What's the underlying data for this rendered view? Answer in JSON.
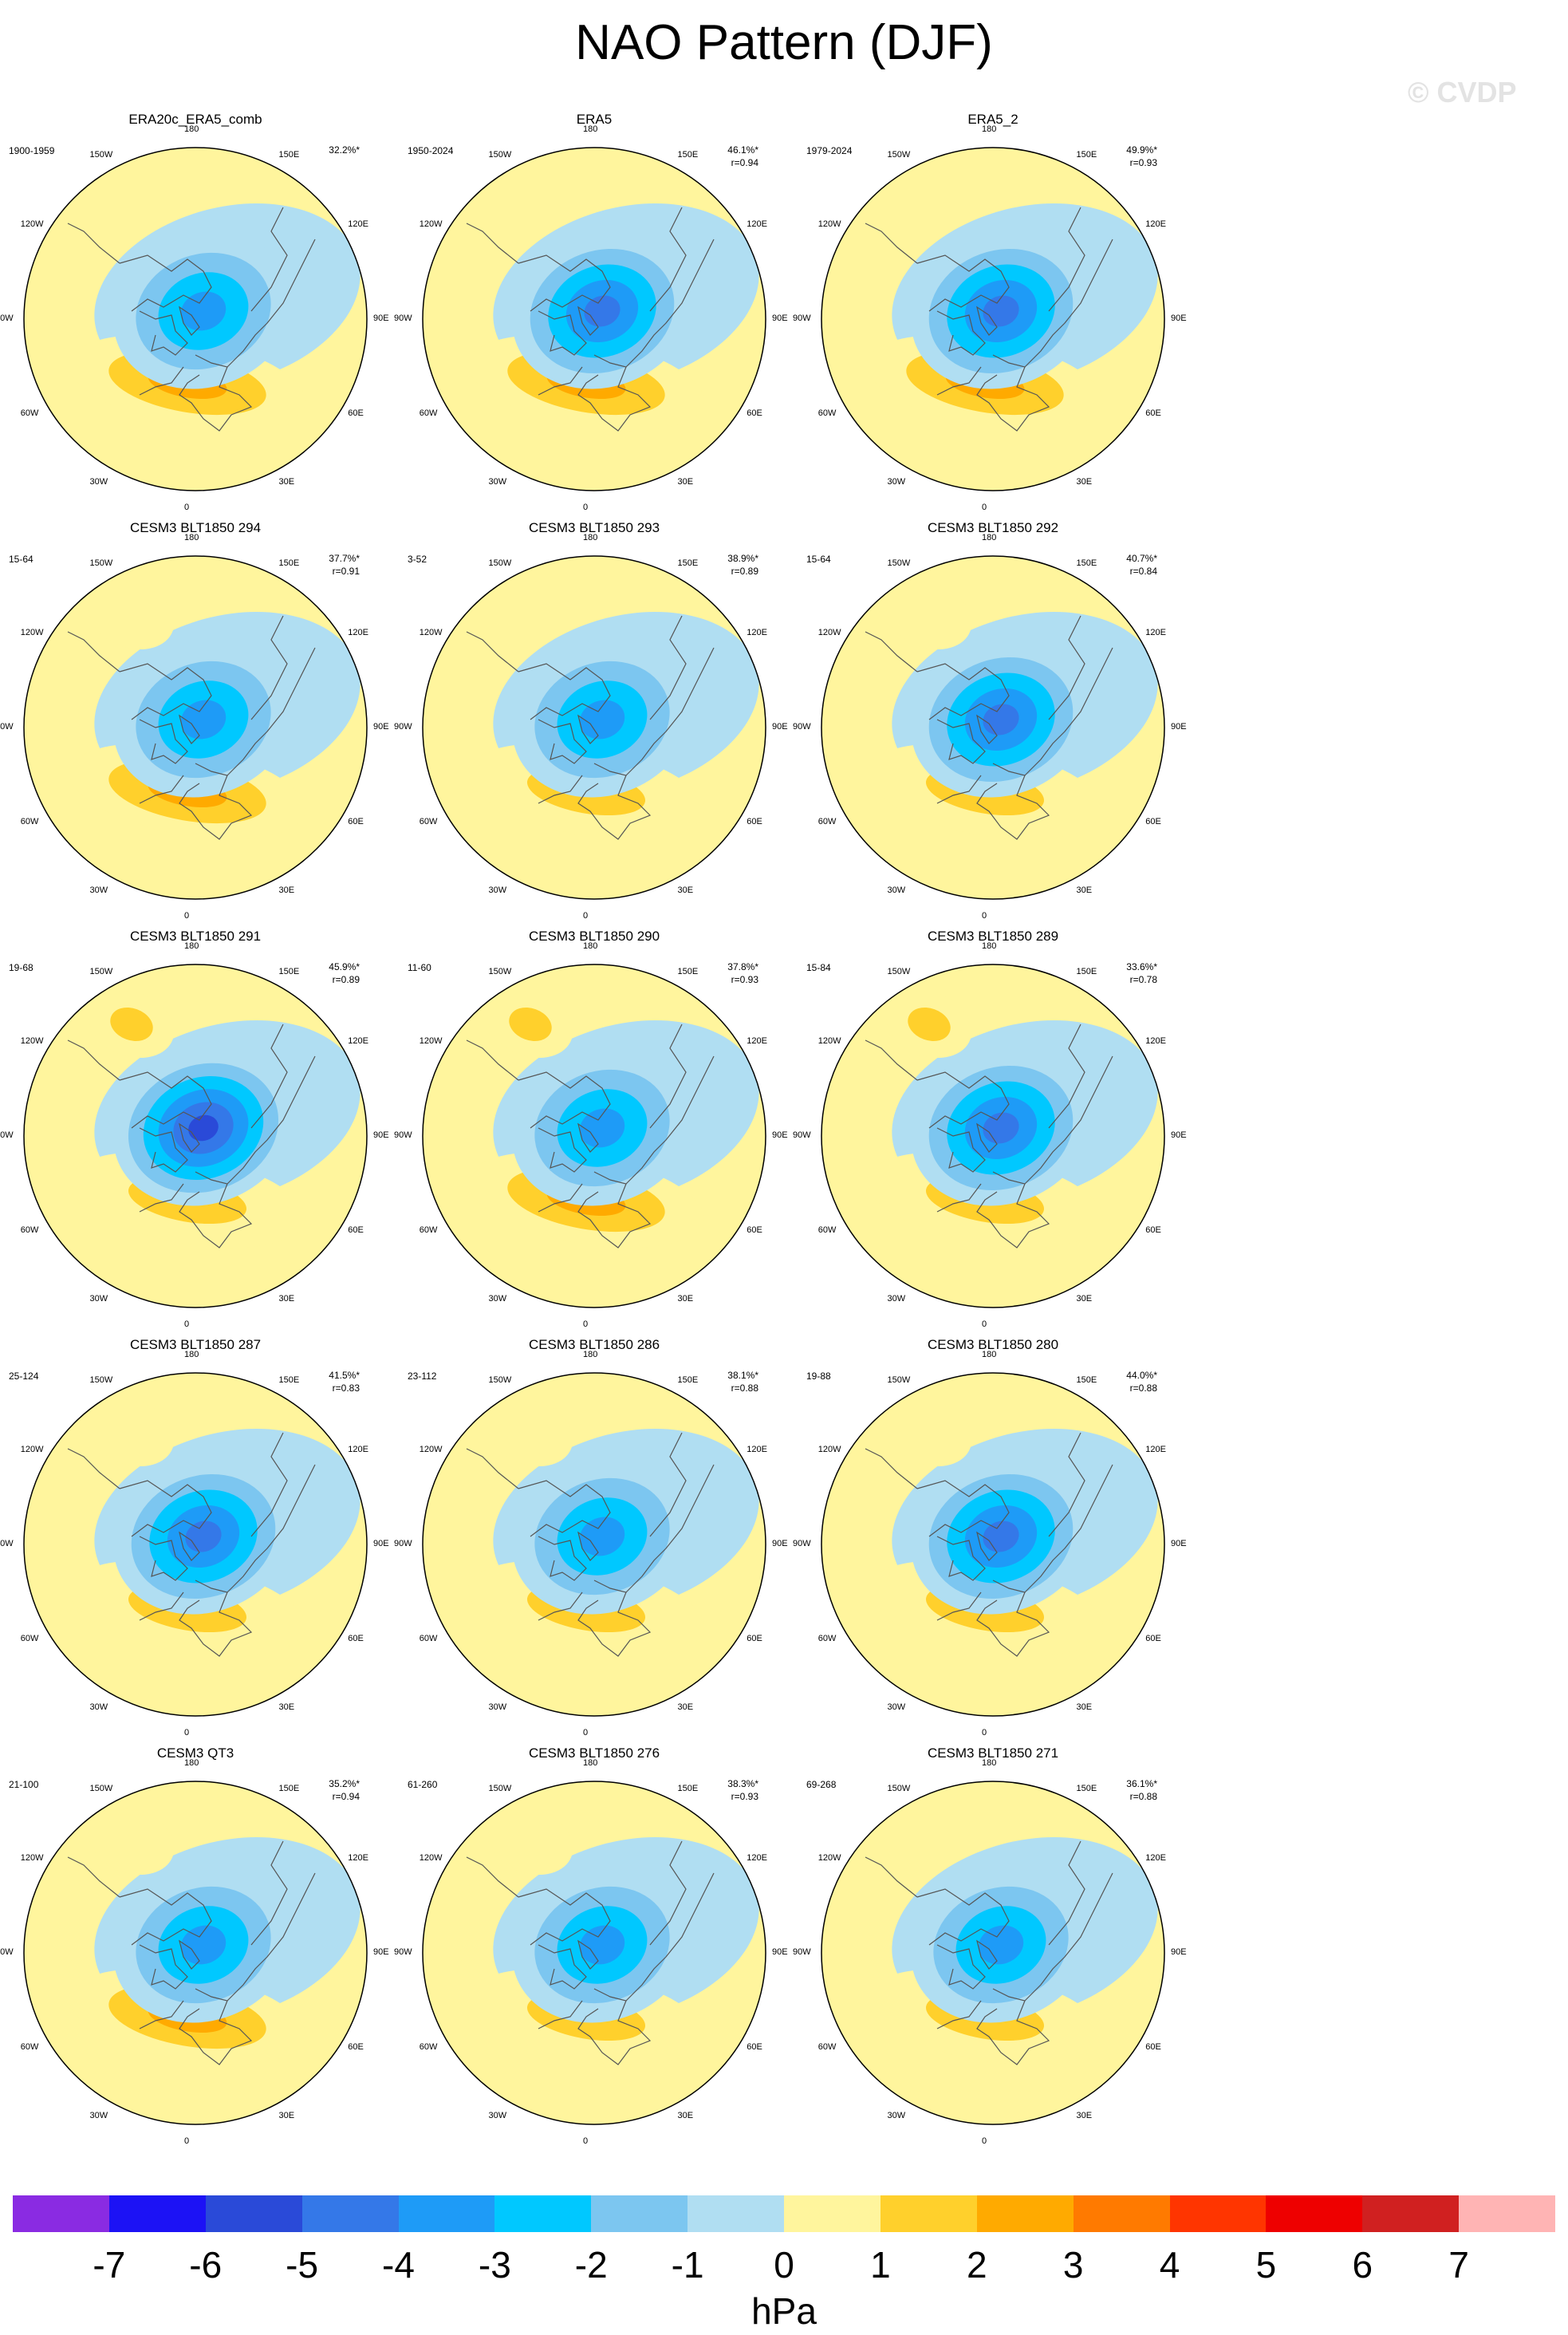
{
  "figure": {
    "title": "NAO Pattern (DJF)",
    "credit": "© CVDP",
    "units": "hPa"
  },
  "lon_labels": [
    "180",
    "150E",
    "120E",
    "90E",
    "60E",
    "30E",
    "0",
    "30W",
    "60W",
    "90W",
    "120W",
    "150W"
  ],
  "chart_data": {
    "type": "heatmap",
    "projection": "north-polar-stereographic",
    "variable": "NAO pattern, sea level pressure regression (DJF)",
    "units": "hPa",
    "colorbar": {
      "ticks": [
        "-7",
        "-6",
        "-5",
        "-4",
        "-3",
        "-2",
        "-1",
        "0",
        "1",
        "2",
        "3",
        "4",
        "5",
        "6",
        "7"
      ],
      "colors": [
        "#8a2be2",
        "#1c12f5",
        "#2a4ad8",
        "#3478e8",
        "#1e9bf7",
        "#00c8ff",
        "#7cc6f0",
        "#b0def2",
        "#fff59d",
        "#ffd02c",
        "#ffaa00",
        "#ff7a00",
        "#ff3500",
        "#ee0000",
        "#d02020",
        "#ffb4b4"
      ]
    },
    "panels": [
      {
        "name": "ERA20c_ERA5_comb",
        "years": "1900-1959",
        "variance": "32.2%*",
        "r": "",
        "center_min": -4.5,
        "atlantic_max": 3.5,
        "pacific_max": 0
      },
      {
        "name": "ERA5",
        "years": "1950-2024",
        "variance": "46.1%*",
        "r": "r=0.94",
        "center_min": -5,
        "atlantic_max": 3,
        "pacific_max": 0
      },
      {
        "name": "ERA5_2",
        "years": "1979-2024",
        "variance": "49.9%*",
        "r": "r=0.93",
        "center_min": -5.5,
        "atlantic_max": 3.5,
        "pacific_max": 0
      },
      {
        "name": "CESM3 BLT1850 294",
        "years": "15-64",
        "variance": "37.7%*",
        "r": "r=0.91",
        "center_min": -4,
        "atlantic_max": 3.5,
        "pacific_max": 1.5
      },
      {
        "name": "CESM3 BLT1850 293",
        "years": "3-52",
        "variance": "38.9%*",
        "r": "r=0.89",
        "center_min": -4.5,
        "atlantic_max": 2.5,
        "pacific_max": 0
      },
      {
        "name": "CESM3 BLT1850 292",
        "years": "15-64",
        "variance": "40.7%*",
        "r": "r=0.84",
        "center_min": -5,
        "atlantic_max": 2.5,
        "pacific_max": 1.2
      },
      {
        "name": "CESM3 BLT1850 291",
        "years": "19-68",
        "variance": "45.9%*",
        "r": "r=0.89",
        "center_min": -6.5,
        "atlantic_max": 2.5,
        "pacific_max": 2.5
      },
      {
        "name": "CESM3 BLT1850 290",
        "years": "11-60",
        "variance": "37.8%*",
        "r": "r=0.93",
        "center_min": -4.5,
        "atlantic_max": 3.5,
        "pacific_max": 2.5
      },
      {
        "name": "CESM3 BLT1850 289",
        "years": "15-84",
        "variance": "33.6%*",
        "r": "r=0.78",
        "center_min": -5,
        "atlantic_max": 2.5,
        "pacific_max": 2.5
      },
      {
        "name": "CESM3 BLT1850 287",
        "years": "25-124",
        "variance": "41.5%*",
        "r": "r=0.83",
        "center_min": -5,
        "atlantic_max": 2.5,
        "pacific_max": 1.5
      },
      {
        "name": "CESM3 BLT1850 286",
        "years": "23-112",
        "variance": "38.1%*",
        "r": "r=0.88",
        "center_min": -4.5,
        "atlantic_max": 2.5,
        "pacific_max": 1.5
      },
      {
        "name": "CESM3 BLT1850 280",
        "years": "19-88",
        "variance": "44.0%*",
        "r": "r=0.88",
        "center_min": -5,
        "atlantic_max": 2.5,
        "pacific_max": 1.5
      },
      {
        "name": "CESM3 QT3",
        "years": "21-100",
        "variance": "35.2%*",
        "r": "r=0.94",
        "center_min": -4.5,
        "atlantic_max": 3.5,
        "pacific_max": 1.5
      },
      {
        "name": "CESM3 BLT1850 276",
        "years": "61-260",
        "variance": "38.3%*",
        "r": "r=0.93",
        "center_min": -4.5,
        "atlantic_max": 2.5,
        "pacific_max": 1.5
      },
      {
        "name": "CESM3 BLT1850 271",
        "years": "69-268",
        "variance": "36.1%*",
        "r": "r=0.88",
        "center_min": -4.5,
        "atlantic_max": 2.5,
        "pacific_max": 0
      }
    ]
  }
}
